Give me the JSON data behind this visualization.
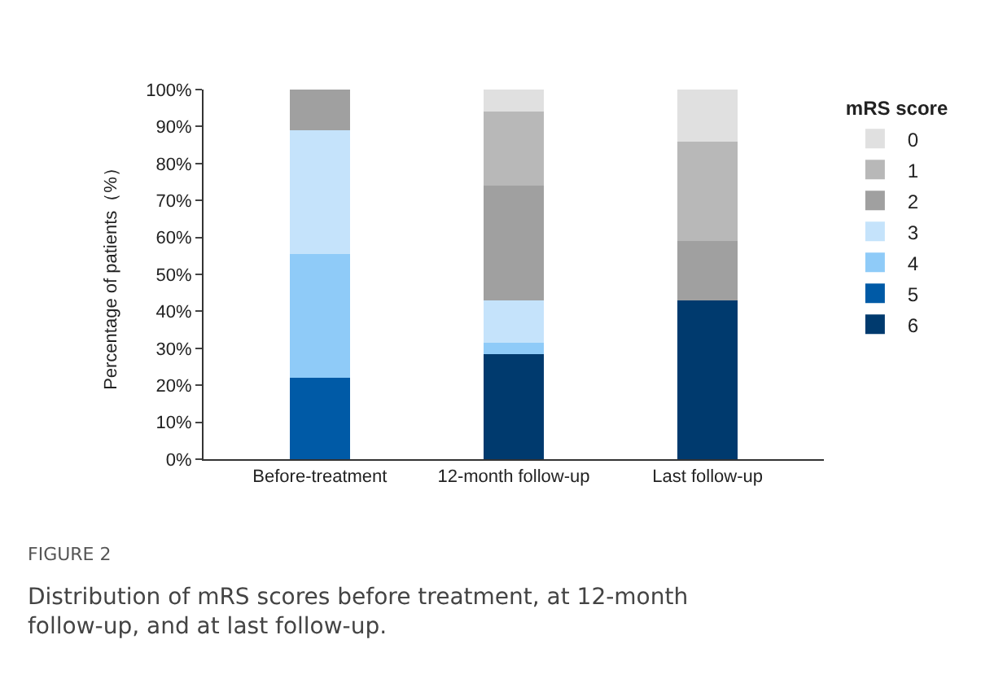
{
  "chart_data": {
    "type": "bar",
    "stacked": true,
    "categories": [
      "Before-treatment",
      "12-month follow-up",
      "Last follow-up"
    ],
    "ylabel": "Percentage of patients（%）",
    "legend_title": "mRS score",
    "legend": "right",
    "ylim": [
      0,
      100
    ],
    "yticks": [
      {
        "value": 0,
        "label": "0%"
      },
      {
        "value": 10,
        "label": "10%"
      },
      {
        "value": 20,
        "label": "20%"
      },
      {
        "value": 30,
        "label": "30%"
      },
      {
        "value": 40,
        "label": "40%"
      },
      {
        "value": 50,
        "label": "50%"
      },
      {
        "value": 60,
        "label": "60%"
      },
      {
        "value": 70,
        "label": "70%"
      },
      {
        "value": 80,
        "label": "80%"
      },
      {
        "value": 90,
        "label": "90%"
      },
      {
        "value": 100,
        "label": "100%"
      }
    ],
    "series": [
      {
        "name": "6",
        "color": "#003a6e",
        "values": [
          0,
          28.5,
          43
        ]
      },
      {
        "name": "5",
        "color": "#005aa6",
        "values": [
          22,
          0,
          0
        ]
      },
      {
        "name": "4",
        "color": "#8fcbf8",
        "values": [
          33.5,
          3,
          0
        ]
      },
      {
        "name": "3",
        "color": "#c5e3fb",
        "values": [
          33.5,
          11.5,
          0
        ]
      },
      {
        "name": "2",
        "color": "#a0a0a0",
        "values": [
          11,
          31,
          16
        ]
      },
      {
        "name": "1",
        "color": "#b8b8b8",
        "values": [
          0,
          20,
          27
        ]
      },
      {
        "name": "0",
        "color": "#e0e0e0",
        "values": [
          0,
          6,
          14
        ]
      }
    ],
    "annotations": [
      "FIGURE 2",
      "Distribution of mRS scores before treatment, at 12-month follow-up, and at last follow-up."
    ]
  }
}
